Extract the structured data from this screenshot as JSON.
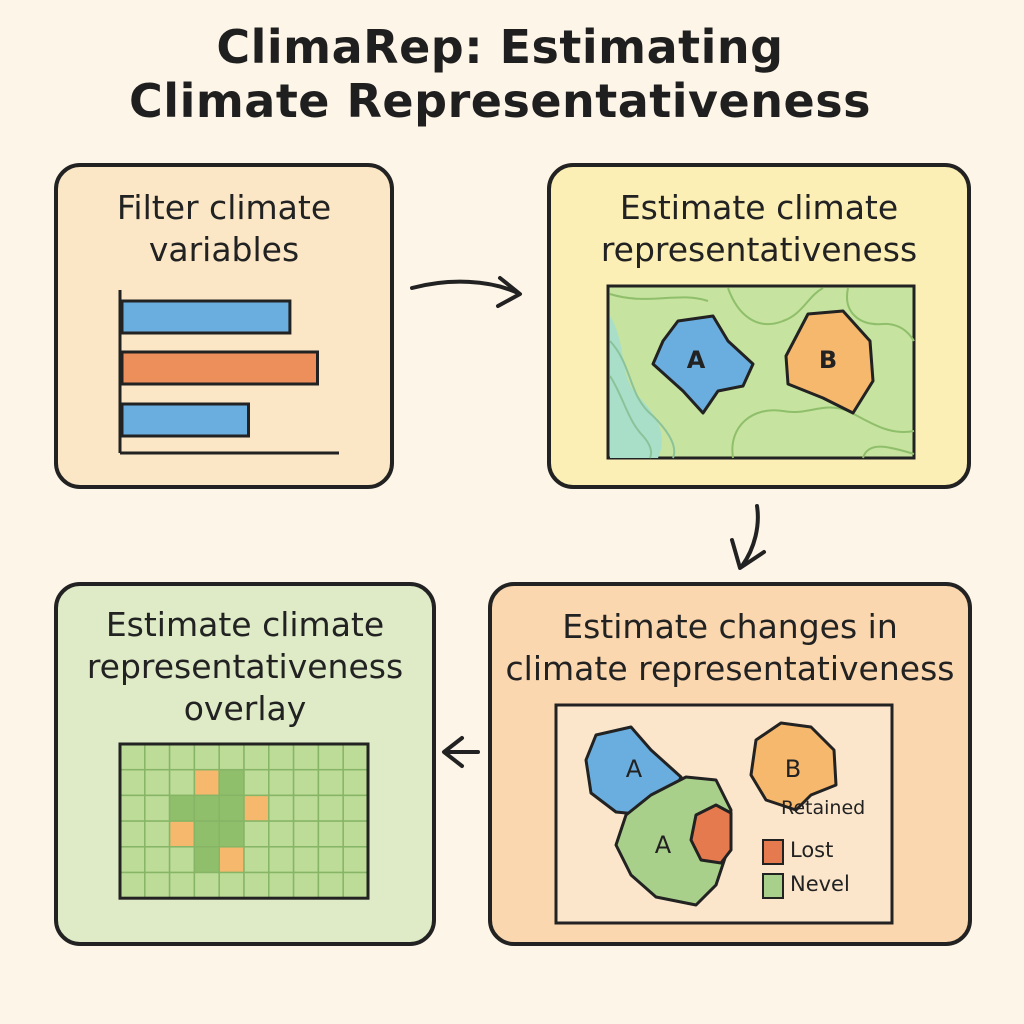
{
  "title": {
    "line1": "ClimaRep: Estimating",
    "line2": "Climate Representativeness"
  },
  "panels": {
    "filter": {
      "label_line1": "Filter climate",
      "label_line2": "variables",
      "bars": [
        {
          "value": 0.73,
          "color": "#6aaee0"
        },
        {
          "value": 0.85,
          "color": "#ec8f5a"
        },
        {
          "value": 0.55,
          "color": "#6aaee0"
        }
      ]
    },
    "estimate": {
      "label_line1": "Estimate climate",
      "label_line2": "representativeness",
      "region_a": "A",
      "region_b": "B"
    },
    "changes": {
      "label_line1": "Estimate changes in",
      "label_line2": "climate representativeness",
      "region_a_top": "A",
      "region_a_bottom": "A",
      "region_b": "B",
      "legend": [
        {
          "label": "Retained",
          "color": ""
        },
        {
          "label": "Lost",
          "color": "#e67a4f"
        },
        {
          "label": "Nevel",
          "color": "#a9d08a"
        }
      ]
    },
    "overlay": {
      "label_line1": "Estimate climate",
      "label_line2": "representativeness",
      "label_line3": "overlay"
    }
  },
  "colors": {
    "blue": "#6aaee0",
    "orange": "#f6b86c",
    "green_light": "#bddc98",
    "green_dark": "#8fbf6b",
    "water": "#a9dfc8",
    "lost": "#e67a4f"
  }
}
